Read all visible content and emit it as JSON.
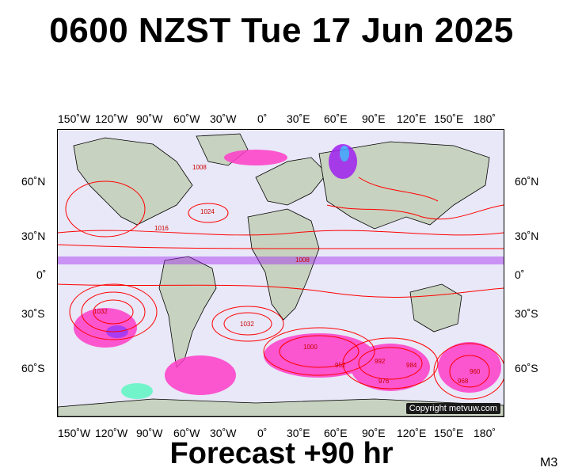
{
  "header": {
    "title": "0600 NZST Tue 17 Jun 2025"
  },
  "footer": {
    "forecast": "Forecast +90 hr",
    "model": "M3"
  },
  "map": {
    "copyright": "Copyright metvuw.com",
    "longitude_labels": [
      "150˚W",
      "120˚W",
      "90˚W",
      "60˚W",
      "30˚W",
      "0˚",
      "30˚E",
      "60˚E",
      "90˚E",
      "120˚E",
      "150˚E",
      "180˚"
    ],
    "latitude_labels": [
      "60˚N",
      "30˚N",
      "0˚",
      "30˚S",
      "60˚S"
    ],
    "pressure_labels": [
      "1008",
      "1024",
      "1016",
      "1032",
      "1000",
      "992",
      "984",
      "976",
      "968",
      "960",
      "952"
    ],
    "colors": {
      "ocean": "#e8e8f8",
      "land": "#c8d2c0",
      "isobar": "#ff0000",
      "rain_light": "#ff3cc8",
      "rain_medium": "#a020f0",
      "rain_heavy": "#3ca0ff",
      "rain_extreme": "#00ffa0"
    }
  }
}
